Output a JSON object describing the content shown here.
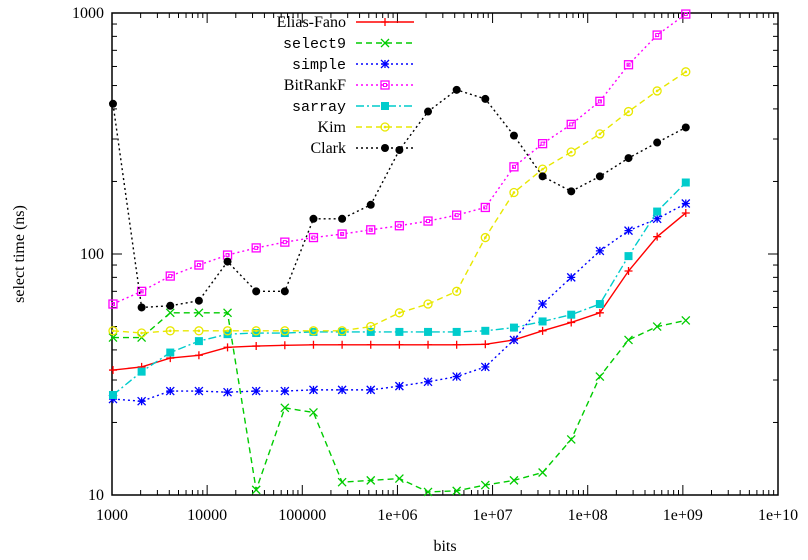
{
  "chart_data": {
    "type": "line",
    "title": "",
    "xlabel": "bits",
    "ylabel": "select time (ns)",
    "x_scale": "log",
    "y_scale": "log",
    "xlim": [
      1000,
      10000000000
    ],
    "ylim": [
      10,
      1000
    ],
    "x_ticks": [
      {
        "value": 1000,
        "label": "1000"
      },
      {
        "value": 10000,
        "label": "10000"
      },
      {
        "value": 100000,
        "label": "100000"
      },
      {
        "value": 1000000,
        "label": "1e+06"
      },
      {
        "value": 10000000,
        "label": "1e+07"
      },
      {
        "value": 100000000,
        "label": "1e+08"
      },
      {
        "value": 1000000000,
        "label": "1e+09"
      },
      {
        "value": 10000000000,
        "label": "1e+10"
      }
    ],
    "y_ticks": [
      {
        "value": 10,
        "label": "10"
      },
      {
        "value": 100,
        "label": "100"
      },
      {
        "value": 1000,
        "label": "1000"
      }
    ],
    "grid": false,
    "legend_position": "top-left",
    "series": [
      {
        "name": "Elias-Fano",
        "color": "#ff0000",
        "dash": "solid",
        "marker": "plus",
        "legend_font": "serif",
        "values": [
          33,
          34,
          37,
          38,
          41,
          41.5,
          41.8,
          42,
          42,
          42,
          42,
          42,
          42,
          42.2,
          44,
          48,
          52,
          57,
          85,
          118,
          148
        ]
      },
      {
        "name": "select9",
        "color": "#00cc00",
        "dash": "dash",
        "marker": "x",
        "legend_font": "mono",
        "values": [
          45,
          45,
          57,
          57,
          57,
          10.5,
          23,
          22,
          11.3,
          11.5,
          11.7,
          10.3,
          10.4,
          11,
          11.5,
          12.4,
          17,
          31,
          44,
          50,
          53
        ]
      },
      {
        "name": "simple",
        "color": "#0000ff",
        "dash": "dot",
        "marker": "star",
        "legend_font": "mono",
        "values": [
          25,
          24.5,
          27,
          27,
          26.7,
          27,
          27,
          27.3,
          27.3,
          27.3,
          28.3,
          29.5,
          31,
          34,
          44,
          62,
          80,
          103,
          125,
          140,
          162
        ]
      },
      {
        "name": "BitRankF",
        "color": "#ff00ff",
        "dash": "dot",
        "marker": "box",
        "legend_font": "serif",
        "values": [
          62,
          70,
          81,
          90,
          99,
          106,
          112,
          117,
          121,
          126,
          131,
          137,
          145,
          156,
          230,
          287,
          345,
          430,
          610,
          810,
          990
        ]
      },
      {
        "name": "sarray",
        "color": "#00cccc",
        "dash": "dashdot",
        "marker": "filledbox",
        "legend_font": "mono",
        "values": [
          26,
          32.5,
          39,
          43.5,
          46.5,
          47,
          47,
          47.5,
          47.5,
          47.5,
          47.5,
          47.5,
          47.5,
          48,
          49.5,
          52.5,
          56,
          62,
          98,
          150,
          198
        ]
      },
      {
        "name": "Kim",
        "color": "#e8e800",
        "dash": "dash",
        "marker": "circle",
        "legend_font": "serif",
        "values": [
          48,
          47,
          48,
          48,
          48,
          48,
          48,
          48,
          48,
          50,
          57,
          62,
          70,
          117,
          180,
          225,
          265,
          315,
          390,
          475,
          570
        ]
      },
      {
        "name": "Clark",
        "color": "#000000",
        "dash": "dot",
        "marker": "filledcircle",
        "legend_font": "serif",
        "values": [
          420,
          60,
          61,
          64,
          93,
          70,
          70,
          140,
          140,
          160,
          270,
          390,
          480,
          440,
          310,
          210,
          182,
          210,
          250,
          290,
          335
        ]
      }
    ],
    "x_values": [
      1024,
      2048,
      4096,
      8192,
      16384,
      32768,
      65536,
      131072,
      262144,
      524288,
      1048576,
      2097152,
      4194304,
      8388608,
      16777216,
      33554432,
      67108864,
      134217728,
      268435456,
      536870912,
      1073741824
    ]
  }
}
